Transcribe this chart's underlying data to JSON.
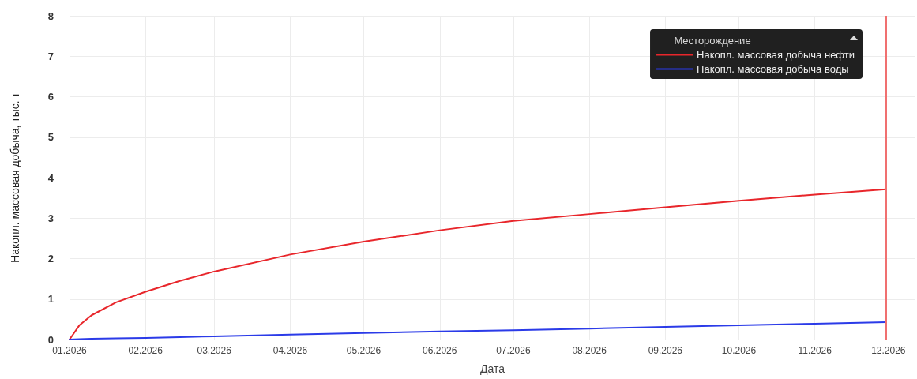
{
  "chart_data": {
    "type": "line",
    "xlabel": "Дата",
    "ylabel": "Накопл. массовая добыча, тыс. т",
    "legend_title": "Месторождение",
    "x": [
      "2026-01-01",
      "2026-01-05",
      "2026-01-10",
      "2026-01-20",
      "2026-02-01",
      "2026-02-15",
      "2026-03-01",
      "2026-04-01",
      "2026-05-01",
      "2026-06-01",
      "2026-07-01",
      "2026-08-01",
      "2026-09-01",
      "2026-10-01",
      "2026-11-01",
      "2026-11-30"
    ],
    "series": [
      {
        "name": "Накопл. массовая добыча нефти",
        "color": "#e8262b",
        "values": [
          0,
          0.35,
          0.6,
          0.92,
          1.18,
          1.45,
          1.68,
          2.1,
          2.42,
          2.7,
          2.93,
          3.1,
          3.27,
          3.43,
          3.58,
          3.71
        ]
      },
      {
        "name": "Накопл. массовая добыча воды",
        "color": "#2b3be8",
        "values": [
          0,
          0.01,
          0.02,
          0.03,
          0.04,
          0.06,
          0.08,
          0.12,
          0.16,
          0.2,
          0.23,
          0.27,
          0.31,
          0.35,
          0.39,
          0.43
        ]
      }
    ],
    "xlim": [
      "2026-01-01",
      "2026-12-12"
    ],
    "xticks": [
      {
        "value": "2026-01-01",
        "label": "01.2026"
      },
      {
        "value": "2026-02-01",
        "label": "02.2026"
      },
      {
        "value": "2026-03-01",
        "label": "03.2026"
      },
      {
        "value": "2026-04-01",
        "label": "04.2026"
      },
      {
        "value": "2026-05-01",
        "label": "05.2026"
      },
      {
        "value": "2026-06-01",
        "label": "06.2026"
      },
      {
        "value": "2026-07-01",
        "label": "07.2026"
      },
      {
        "value": "2026-08-01",
        "label": "08.2026"
      },
      {
        "value": "2026-09-01",
        "label": "09.2026"
      },
      {
        "value": "2026-10-01",
        "label": "10.2026"
      },
      {
        "value": "2026-11-01",
        "label": "11.2026"
      },
      {
        "value": "2026-12-01",
        "label": "12.2026"
      }
    ],
    "ylim": [
      0,
      8
    ],
    "yticks": [
      0,
      1,
      2,
      3,
      4,
      5,
      6,
      7,
      8
    ],
    "ref_lines": [
      {
        "axis": "x",
        "value": "2026-11-30",
        "color": "#f07070"
      }
    ],
    "grid": true,
    "legend": "top right",
    "marker": "none",
    "line_style": "solid"
  }
}
